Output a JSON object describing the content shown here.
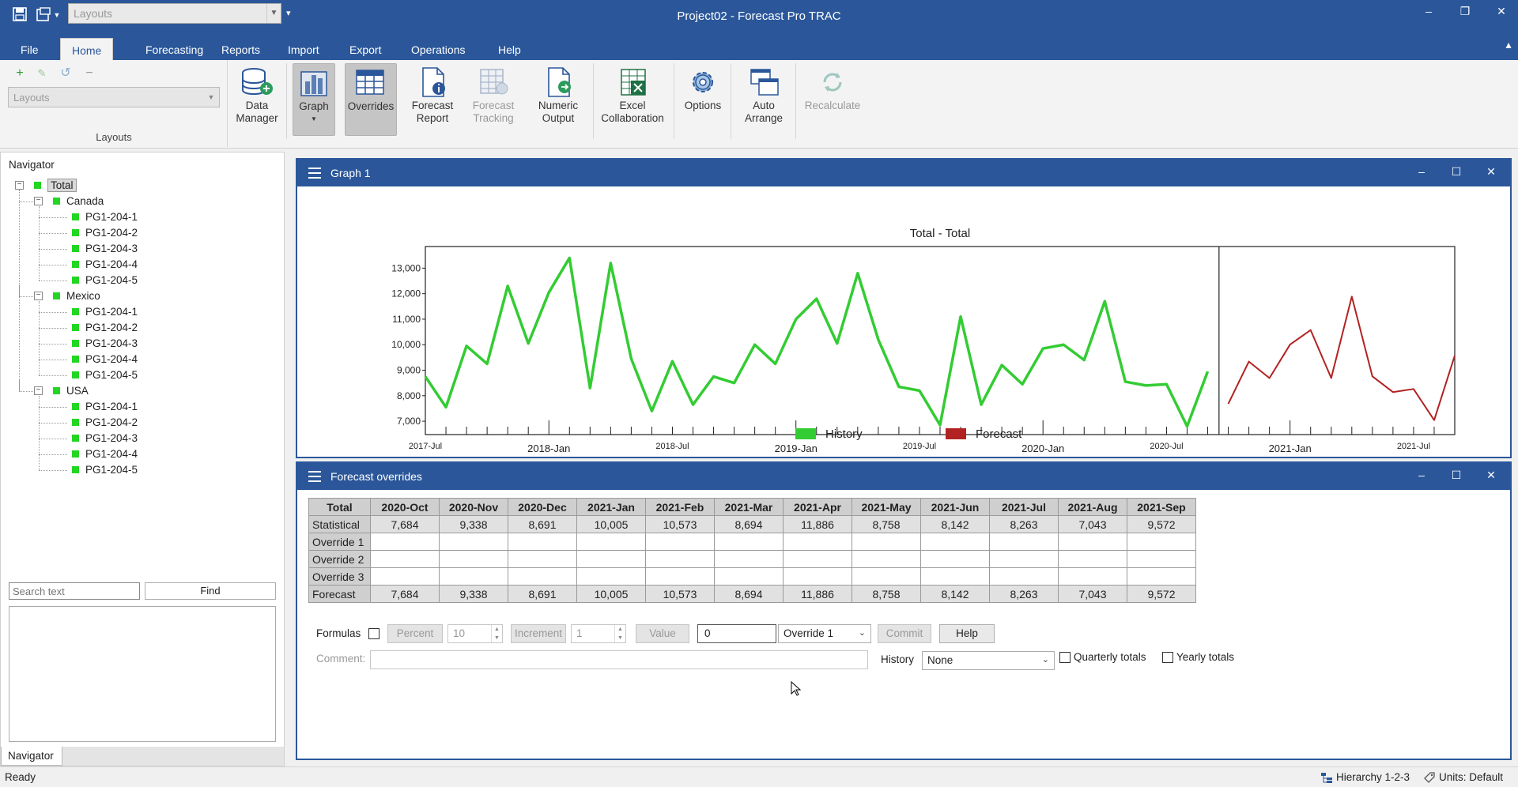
{
  "window": {
    "title": "Project02 - Forecast Pro TRAC",
    "qat_layout_placeholder": "Layouts",
    "controls": [
      "–",
      "❐",
      "✕"
    ]
  },
  "tabs": [
    {
      "label": "File"
    },
    {
      "label": "Home",
      "active": true
    },
    {
      "label": "Forecasting"
    },
    {
      "label": "Reports"
    },
    {
      "label": "Import"
    },
    {
      "label": "Export"
    },
    {
      "label": "Operations"
    },
    {
      "label": "Help"
    }
  ],
  "ribbon": {
    "layouts_combo_placeholder": "Layouts",
    "layouts_group_label": "Layouts",
    "buttons": {
      "data_manager": "Data\nManager",
      "graph": "Graph",
      "overrides": "Overrides",
      "forecast_report": "Forecast\nReport",
      "forecast_tracking": "Forecast\nTracking",
      "numeric_output": "Numeric\nOutput",
      "excel_collaboration": "Excel\nCollaboration",
      "options": "Options",
      "auto_arrange": "Auto\nArrange",
      "recalculate": "Recalculate"
    }
  },
  "navigator": {
    "title": "Navigator",
    "root": "Total",
    "groups": [
      {
        "name": "Canada",
        "items": [
          "PG1-204-1",
          "PG1-204-2",
          "PG1-204-3",
          "PG1-204-4",
          "PG1-204-5"
        ]
      },
      {
        "name": "Mexico",
        "items": [
          "PG1-204-1",
          "PG1-204-2",
          "PG1-204-3",
          "PG1-204-4",
          "PG1-204-5"
        ]
      },
      {
        "name": "USA",
        "items": [
          "PG1-204-1",
          "PG1-204-2",
          "PG1-204-3",
          "PG1-204-4",
          "PG1-204-5"
        ]
      }
    ],
    "search_placeholder": "Search text",
    "find_label": "Find",
    "tab_label": "Navigator"
  },
  "graph_panel": {
    "title": "Graph 1"
  },
  "chart_data": {
    "type": "line",
    "title": "Total - Total",
    "y_ticks": [
      "13,000",
      "12,000",
      "11,000",
      "10,000",
      "9,000",
      "8,000",
      "7,000"
    ],
    "ylim": [
      6600,
      13600
    ],
    "x_labels_minor": [
      "2017-Jul",
      "2018-Jul",
      "2019-Jul",
      "2020-Jul",
      "2021-Jul"
    ],
    "x_labels_major": [
      "2018-Jan",
      "2019-Jan",
      "2020-Jan",
      "2021-Jan"
    ],
    "legend": {
      "position": "bottom",
      "entries": [
        {
          "name": "History",
          "color": "#33cc33"
        },
        {
          "name": "Forecast",
          "color": "#b22222"
        }
      ]
    },
    "series": [
      {
        "name": "History",
        "color": "#33cc33",
        "x": [
          "2017-Jul",
          "2017-Aug",
          "2017-Sep",
          "2017-Oct",
          "2017-Nov",
          "2017-Dec",
          "2018-Jan",
          "2018-Feb",
          "2018-Mar",
          "2018-Apr",
          "2018-May",
          "2018-Jun",
          "2018-Jul",
          "2018-Aug",
          "2018-Sep",
          "2018-Oct",
          "2018-Nov",
          "2018-Dec",
          "2019-Jan",
          "2019-Feb",
          "2019-Mar",
          "2019-Apr",
          "2019-May",
          "2019-Jun",
          "2019-Jul",
          "2019-Aug",
          "2019-Sep",
          "2019-Oct",
          "2019-Nov",
          "2019-Dec",
          "2020-Jan",
          "2020-Feb",
          "2020-Mar",
          "2020-Apr",
          "2020-May",
          "2020-Jun",
          "2020-Jul",
          "2020-Aug",
          "2020-Sep"
        ],
        "values": [
          8750,
          7550,
          9950,
          9250,
          12300,
          10050,
          12050,
          13400,
          8300,
          13200,
          9450,
          7400,
          9350,
          7650,
          8750,
          8500,
          10000,
          9250,
          11000,
          11800,
          10050,
          12800,
          10200,
          8350,
          8200,
          6850,
          11100,
          7650,
          9200,
          8450,
          9850,
          10000,
          9400,
          11700,
          8550,
          8400,
          8450,
          6800,
          8950
        ]
      },
      {
        "name": "Forecast",
        "color": "#b22222",
        "x": [
          "2020-Oct",
          "2020-Nov",
          "2020-Dec",
          "2021-Jan",
          "2021-Feb",
          "2021-Mar",
          "2021-Apr",
          "2021-May",
          "2021-Jun",
          "2021-Jul",
          "2021-Aug",
          "2021-Sep"
        ],
        "values": [
          7684,
          9338,
          8691,
          10005,
          10573,
          8694,
          11886,
          8758,
          8142,
          8263,
          7043,
          9572
        ]
      }
    ]
  },
  "overrides_panel": {
    "title": "Forecast overrides",
    "corner": "Total",
    "columns": [
      "2020-Oct",
      "2020-Nov",
      "2020-Dec",
      "2021-Jan",
      "2021-Feb",
      "2021-Mar",
      "2021-Apr",
      "2021-May",
      "2021-Jun",
      "2021-Jul",
      "2021-Aug",
      "2021-Sep"
    ],
    "rows": [
      {
        "label": "Statistical",
        "values": [
          "7,684",
          "9,338",
          "8,691",
          "10,005",
          "10,573",
          "8,694",
          "11,886",
          "8,758",
          "8,142",
          "8,263",
          "7,043",
          "9,572"
        ]
      },
      {
        "label": "Override 1",
        "values": [
          "",
          "",
          "",
          "",
          "",
          "",
          "",
          "",
          "",
          "",
          "",
          ""
        ]
      },
      {
        "label": "Override 2",
        "values": [
          "",
          "",
          "",
          "",
          "",
          "",
          "",
          "",
          "",
          "",
          "",
          ""
        ]
      },
      {
        "label": "Override 3",
        "values": [
          "",
          "",
          "",
          "",
          "",
          "",
          "",
          "",
          "",
          "",
          "",
          ""
        ]
      },
      {
        "label": "Forecast",
        "values": [
          "7,684",
          "9,338",
          "8,691",
          "10,005",
          "10,573",
          "8,694",
          "11,886",
          "8,758",
          "8,142",
          "8,263",
          "7,043",
          "9,572"
        ]
      }
    ],
    "controls": {
      "formulas_label": "Formulas",
      "percent_label": "Percent",
      "percent_value": "10",
      "increment_label": "Increment",
      "increment_value": "1",
      "value_label": "Value",
      "value_input": "0",
      "override_select": "Override 1",
      "commit_label": "Commit",
      "help_label": "Help",
      "comment_label": "Comment:",
      "history_label": "History",
      "history_select": "None",
      "quarterly_label": "Quarterly totals",
      "yearly_label": "Yearly totals"
    }
  },
  "statusbar": {
    "left": "Ready",
    "hierarchy": "Hierarchy 1-2-3",
    "units": "Units: Default"
  },
  "colors": {
    "accent": "#2b579a",
    "history": "#33cc33",
    "forecast": "#b22222"
  }
}
